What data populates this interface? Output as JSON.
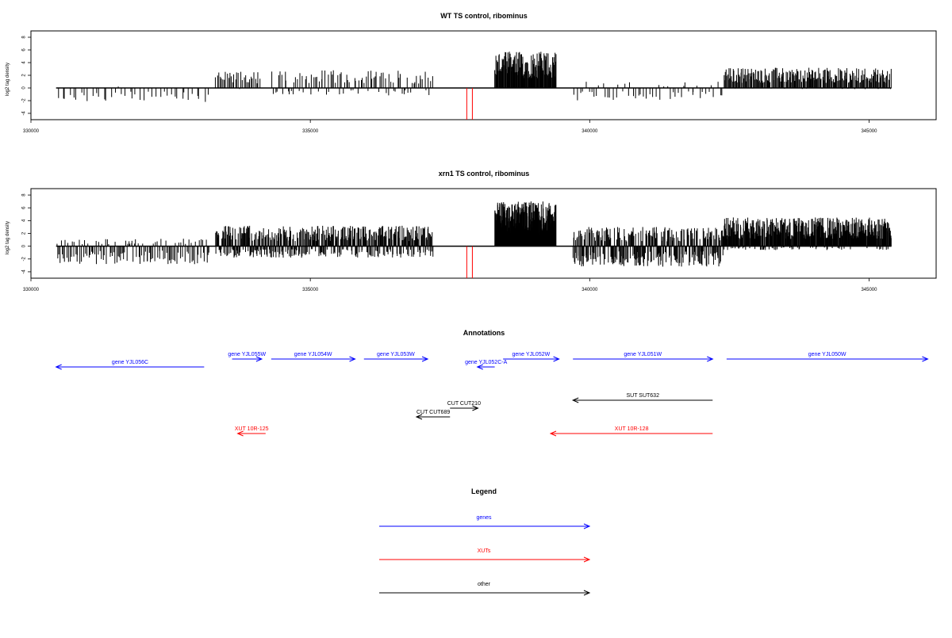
{
  "chart_data": [
    {
      "type": "bar",
      "title": "WT TS control, ribominus",
      "ylabel": "log2 tag density",
      "xlim": [
        330000,
        346200
      ],
      "ylim": [
        -5,
        9
      ],
      "xticks": [
        330000,
        335000,
        340000,
        345000
      ],
      "yticks": [
        -4,
        -2,
        0,
        2,
        4,
        6,
        8
      ],
      "marker_color": "#ff0000",
      "marker_x": [
        337800,
        337900
      ],
      "marker_y": [
        -5,
        0
      ],
      "bar_color": "#000000",
      "segments": [
        {
          "from": 330450,
          "to": 333200,
          "pos": 0.3,
          "neg": 2.2,
          "density": 0.015
        },
        {
          "from": 333300,
          "to": 334100,
          "pos": 2.6,
          "neg": 0.4,
          "density": 0.04
        },
        {
          "from": 334300,
          "to": 337200,
          "pos": 2.8,
          "neg": 1.2,
          "density": 0.035
        },
        {
          "from": 338300,
          "to": 339400,
          "pos": 5.8,
          "neg": 0.0,
          "density": 0.12
        },
        {
          "from": 339700,
          "to": 342400,
          "pos": 1.0,
          "neg": 2.0,
          "density": 0.02
        },
        {
          "from": 342400,
          "to": 345400,
          "pos": 3.2,
          "neg": 0.2,
          "density": 0.08
        }
      ]
    },
    {
      "type": "bar",
      "title": "xrn1 TS control, ribominus",
      "ylabel": "log2 tag density",
      "xlim": [
        330000,
        346200
      ],
      "ylim": [
        -5,
        9
      ],
      "xticks": [
        330000,
        335000,
        340000,
        345000
      ],
      "yticks": [
        -4,
        -2,
        0,
        2,
        4,
        6,
        8
      ],
      "marker_color": "#ff0000",
      "marker_x": [
        337800,
        337900
      ],
      "marker_y": [
        -5,
        0
      ],
      "bar_color": "#000000",
      "segments": [
        {
          "from": 330450,
          "to": 333200,
          "pos": 1.2,
          "neg": 2.8,
          "density": 0.05
        },
        {
          "from": 333300,
          "to": 337200,
          "pos": 3.2,
          "neg": 1.8,
          "density": 0.12
        },
        {
          "from": 338300,
          "to": 339400,
          "pos": 7.0,
          "neg": 0.0,
          "density": 0.25
        },
        {
          "from": 339700,
          "to": 342400,
          "pos": 3.0,
          "neg": 3.2,
          "density": 0.12
        },
        {
          "from": 342400,
          "to": 345400,
          "pos": 4.5,
          "neg": 0.6,
          "density": 0.15
        }
      ]
    }
  ],
  "annotations": {
    "title": "Annotations",
    "features": [
      {
        "label": "gene YJL056C",
        "start": 333100,
        "end": 330450,
        "row": 2,
        "color": "#0000ff"
      },
      {
        "label": "gene YJL055W",
        "start": 333600,
        "end": 334130,
        "row": 1,
        "color": "#0000ff"
      },
      {
        "label": "gene YJL054W",
        "start": 334300,
        "end": 335800,
        "row": 1,
        "color": "#0000ff"
      },
      {
        "label": "gene YJL053W",
        "start": 335960,
        "end": 337100,
        "row": 1,
        "color": "#0000ff"
      },
      {
        "label": "gene YJL052C-A",
        "start": 338300,
        "end": 337990,
        "row": 2,
        "color": "#0000ff"
      },
      {
        "label": "gene YJL052W",
        "start": 338450,
        "end": 339450,
        "row": 1,
        "color": "#0000ff"
      },
      {
        "label": "gene YJL051W",
        "start": 339700,
        "end": 342200,
        "row": 1,
        "color": "#0000ff"
      },
      {
        "label": "gene YJL050W",
        "start": 342450,
        "end": 346050,
        "row": 1,
        "color": "#0000ff"
      },
      {
        "label": "SUT SUT632",
        "start": 342200,
        "end": 339700,
        "row": 3,
        "color": "#000000"
      },
      {
        "label": "CUT CUT210",
        "start": 337500,
        "end": 338000,
        "row": 4,
        "color": "#000000"
      },
      {
        "label": "CUT CUT689",
        "start": 337500,
        "end": 336900,
        "row": 5,
        "color": "#000000"
      },
      {
        "label": "XUT 10R-125",
        "start": 334200,
        "end": 333700,
        "row": 6,
        "color": "#ff0000"
      },
      {
        "label": "XUT 10R-128",
        "start": 342200,
        "end": 339300,
        "row": 6,
        "color": "#ff0000"
      }
    ]
  },
  "legend": {
    "title": "Legend",
    "items": [
      {
        "label": "genes",
        "color": "#0000ff"
      },
      {
        "label": "XUTs",
        "color": "#ff0000"
      },
      {
        "label": "other",
        "color": "#000000"
      }
    ]
  }
}
